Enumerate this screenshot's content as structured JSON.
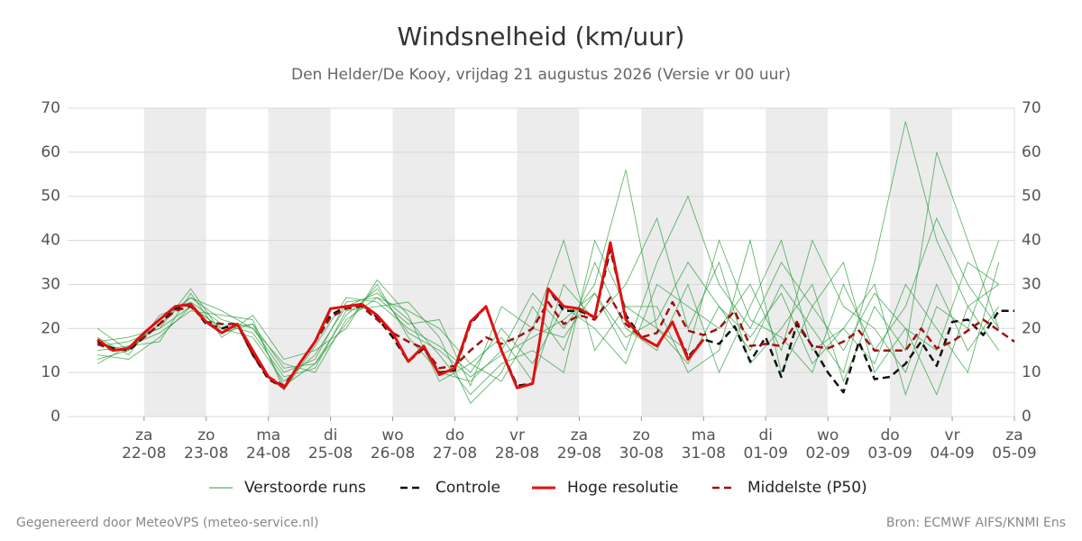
{
  "chart_data": {
    "type": "line",
    "title": "Windsnelheid (km/uur)",
    "subtitle": "Den Helder/De Kooy, vrijdag 21 augustus 2026 (Versie vr 00 uur)",
    "xlim": [
      -0.23,
      15
    ],
    "xticks": [
      {
        "value": 1,
        "label": [
          "za",
          "22-08"
        ]
      },
      {
        "value": 2,
        "label": [
          "zo",
          "23-08"
        ]
      },
      {
        "value": 3,
        "label": [
          "ma",
          "24-08"
        ]
      },
      {
        "value": 4,
        "label": [
          "di",
          "25-08"
        ]
      },
      {
        "value": 5,
        "label": [
          "wo",
          "26-08"
        ]
      },
      {
        "value": 6,
        "label": [
          "do",
          "27-08"
        ]
      },
      {
        "value": 7,
        "label": [
          "vr",
          "28-08"
        ]
      },
      {
        "value": 8,
        "label": [
          "za",
          "29-08"
        ]
      },
      {
        "value": 9,
        "label": [
          "zo",
          "30-08"
        ]
      },
      {
        "value": 10,
        "label": [
          "ma",
          "31-08"
        ]
      },
      {
        "value": 11,
        "label": [
          "di",
          "01-09"
        ]
      },
      {
        "value": 12,
        "label": [
          "wo",
          "02-09"
        ]
      },
      {
        "value": 13,
        "label": [
          "do",
          "03-09"
        ]
      },
      {
        "value": 14,
        "label": [
          "vr",
          "04-09"
        ]
      },
      {
        "value": 15,
        "label": [
          "za",
          "05-09"
        ]
      }
    ],
    "ylim": [
      0,
      70
    ],
    "yticks": [
      0,
      10,
      20,
      30,
      40,
      50,
      60,
      70
    ],
    "y2lim": [
      0,
      70
    ],
    "y2ticks": [
      0,
      10,
      20,
      30,
      40,
      50,
      60,
      70
    ],
    "grid": true,
    "ensemble": {
      "name": "Verstoorde runs",
      "color": "#2e9e3e",
      "x": [
        0.25,
        0.75,
        1.25,
        1.75,
        2.25,
        2.75,
        3.25,
        3.75,
        4.25,
        4.75,
        5.25,
        5.75,
        6.25,
        6.75,
        7.25,
        7.75,
        8.25,
        8.75,
        9.25,
        9.75,
        10.25,
        10.75,
        11.25,
        11.75,
        12.25,
        12.75,
        13.25,
        13.75,
        14.25,
        14.75
      ],
      "members": [
        [
          20,
          15,
          22,
          27,
          22,
          20,
          12,
          10,
          22,
          27,
          24,
          20,
          12,
          8,
          20,
          18,
          28,
          15,
          35,
          50,
          30,
          20,
          35,
          25,
          15,
          28,
          20,
          15,
          35,
          30
        ],
        [
          14,
          13,
          18,
          25,
          20,
          18,
          8,
          14,
          25,
          28,
          22,
          14,
          5,
          12,
          15,
          10,
          40,
          25,
          20,
          15,
          40,
          22,
          18,
          10,
          30,
          15,
          25,
          45,
          30,
          20
        ],
        [
          16,
          17,
          20,
          29,
          19,
          21,
          11,
          12,
          21,
          30,
          18,
          10,
          8,
          15,
          28,
          20,
          30,
          56,
          20,
          12,
          25,
          15,
          30,
          20,
          10,
          35,
          67,
          40,
          25,
          15
        ],
        [
          12,
          16,
          19,
          24,
          23,
          22,
          6,
          16,
          27,
          26,
          20,
          16,
          10,
          20,
          12,
          25,
          20,
          12,
          30,
          25,
          20,
          30,
          15,
          40,
          25,
          20,
          10,
          30,
          15,
          25
        ],
        [
          18,
          14,
          23,
          26,
          21,
          19,
          9,
          11,
          24,
          25,
          26,
          18,
          3,
          10,
          25,
          15,
          35,
          20,
          15,
          30,
          10,
          25,
          40,
          15,
          20,
          12,
          30,
          20,
          10,
          35
        ],
        [
          15,
          16,
          17,
          28,
          18,
          23,
          13,
          15,
          20,
          31,
          23,
          8,
          12,
          18,
          8,
          30,
          22,
          30,
          45,
          20,
          35,
          12,
          20,
          30,
          8,
          25,
          15,
          60,
          40,
          20
        ],
        [
          13,
          15,
          21,
          27,
          24,
          20,
          10,
          13,
          26,
          27,
          21,
          22,
          7,
          25,
          20,
          40,
          15,
          25,
          25,
          10,
          15,
          40,
          10,
          25,
          35,
          10,
          20,
          5,
          25,
          30
        ],
        [
          17,
          18,
          20,
          25,
          20,
          21,
          7,
          12,
          23,
          29,
          19,
          15,
          9,
          14,
          18,
          22,
          28,
          18,
          22,
          35,
          25,
          18,
          28,
          12,
          20,
          30,
          5,
          25,
          20,
          40
        ]
      ]
    },
    "series": [
      {
        "name": "Controle",
        "color": "#111111",
        "dash": true,
        "x": [
          0.25,
          0.5,
          0.75,
          1,
          1.25,
          1.5,
          1.75,
          2,
          2.25,
          2.5,
          2.75,
          3,
          3.25,
          3.5,
          3.75,
          4,
          4.25,
          4.5,
          4.75,
          5,
          5.25,
          5.5,
          5.75,
          6,
          6.25,
          6.5,
          6.75,
          7,
          7.25,
          7.5,
          7.75,
          8,
          8.25,
          8.5,
          8.75,
          9,
          9.25,
          9.5,
          9.75,
          10,
          10.25,
          10.5,
          10.75,
          11,
          11.25,
          11.5,
          11.75,
          12,
          12.25,
          12.5,
          12.75,
          13,
          13.25,
          13.5,
          13.75,
          14,
          14.25,
          14.5,
          14.75,
          15
        ],
        "values": [
          17,
          15.5,
          15,
          18,
          21,
          24.5,
          25.5,
          21,
          20,
          21,
          14,
          8.5,
          6.5,
          12,
          17,
          23,
          25,
          25.5,
          22.5,
          18,
          12.5,
          15.5,
          10,
          10.5,
          21,
          25,
          15,
          7,
          7.5,
          29,
          24,
          24,
          22.5,
          38,
          23,
          18,
          16,
          21.5,
          13.5,
          17.5,
          16.5,
          20.5,
          12.5,
          18,
          9,
          21,
          16,
          10,
          5.5,
          17,
          8.5,
          9,
          12,
          17,
          11.5,
          21.5,
          22,
          18.5,
          24,
          24
        ]
      },
      {
        "name": "Hoge resolutie",
        "color": "#e01010",
        "dash": false,
        "x": [
          0.25,
          0.5,
          0.75,
          1,
          1.25,
          1.5,
          1.75,
          2,
          2.25,
          2.5,
          2.75,
          3,
          3.25,
          3.5,
          3.75,
          4,
          4.25,
          4.5,
          4.75,
          5,
          5.25,
          5.5,
          5.75,
          6,
          6.25,
          6.5,
          6.75,
          7,
          7.25,
          7.5,
          7.75,
          8,
          8.25,
          8.5,
          8.75,
          9,
          9.25,
          9.5,
          9.75,
          10
        ],
        "values": [
          17.5,
          15,
          15.5,
          19,
          22,
          25,
          25.5,
          21.5,
          19,
          21,
          15,
          9,
          6.5,
          12,
          17,
          24.5,
          25,
          25.5,
          23,
          19,
          12.5,
          16,
          9.5,
          11,
          21.5,
          25,
          15,
          6.5,
          7.5,
          29,
          25,
          24.5,
          22.5,
          39.5,
          22,
          18,
          16,
          21.5,
          13,
          17.5
        ]
      },
      {
        "name": "Middelste (P50)",
        "color": "#a01010",
        "dash": true,
        "x": [
          0.25,
          0.5,
          0.75,
          1,
          1.25,
          1.5,
          1.75,
          2,
          2.25,
          2.5,
          2.75,
          3,
          3.25,
          3.5,
          3.75,
          4,
          4.25,
          4.5,
          4.75,
          5,
          5.25,
          5.5,
          5.75,
          6,
          6.25,
          6.5,
          6.75,
          7,
          7.25,
          7.5,
          7.75,
          8,
          8.25,
          8.5,
          8.75,
          9,
          9.25,
          9.5,
          9.75,
          10,
          10.25,
          10.5,
          10.75,
          11,
          11.25,
          11.5,
          11.75,
          12,
          12.25,
          12.5,
          12.75,
          13,
          13.25,
          13.5,
          13.75,
          14,
          14.25,
          14.5,
          14.75,
          15
        ],
        "values": [
          16.5,
          15,
          15.5,
          18,
          21,
          24,
          25,
          21.5,
          21,
          21,
          14,
          9,
          7,
          12,
          17,
          22.5,
          24.5,
          25,
          22,
          19,
          17,
          15.5,
          11,
          11.5,
          15,
          18,
          16.5,
          18,
          20,
          26,
          21,
          23,
          22,
          27,
          21,
          18,
          19,
          26,
          19.5,
          18.5,
          20,
          24,
          16,
          16.5,
          16,
          21.5,
          16,
          15.5,
          17,
          19.5,
          15,
          15,
          15,
          20,
          15.5,
          17,
          19.5,
          22,
          19.5,
          17
        ]
      }
    ]
  },
  "footer": {
    "left": "Gegenereerd door MeteoVPS (meteo-service.nl)",
    "right": "Bron: ECMWF AIFS/KNMI Ens"
  }
}
